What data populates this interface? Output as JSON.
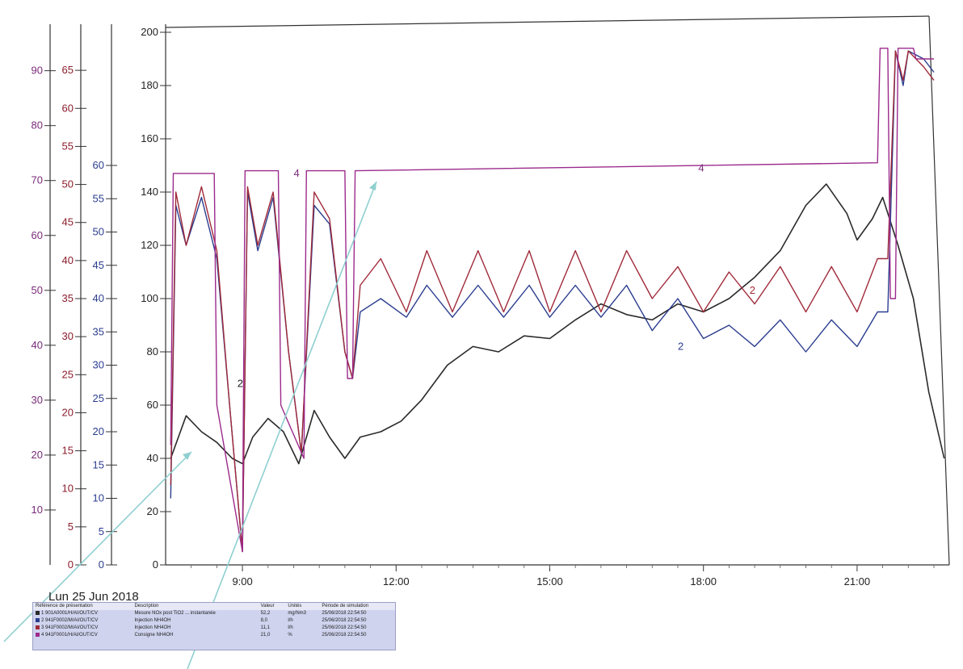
{
  "chart_data": {
    "type": "line",
    "date": "Lun 25 Jun 2018",
    "x_ticks": [
      "9:00",
      "12:00",
      "15:00",
      "18:00",
      "21:00"
    ],
    "axes": [
      {
        "id": "a1",
        "color": "#7a2a7a",
        "ticks": [
          10,
          20,
          30,
          40,
          50,
          60,
          70,
          80,
          90
        ],
        "range": [
          0,
          97
        ]
      },
      {
        "id": "a2",
        "color": "#8b1d2c",
        "ticks": [
          0,
          5,
          10,
          15,
          20,
          25,
          30,
          35,
          40,
          45,
          50,
          55,
          60,
          65
        ],
        "range": [
          0,
          70
        ]
      },
      {
        "id": "a3",
        "color": "#2b3d8f",
        "ticks": [
          0,
          5,
          10,
          15,
          20,
          25,
          30,
          35,
          40,
          45,
          50,
          55,
          60
        ],
        "range": [
          0,
          80
        ]
      },
      {
        "id": "a4",
        "color": "#222222",
        "ticks": [
          0,
          20,
          40,
          60,
          80,
          100,
          120,
          140,
          160,
          180,
          200
        ],
        "range": [
          0,
          200
        ]
      }
    ],
    "series": [
      {
        "id": "1",
        "color": "#2a2a2a",
        "x": [
          7.6,
          7.9,
          8.2,
          8.5,
          8.8,
          9.0,
          9.2,
          9.5,
          9.8,
          10.1,
          10.4,
          10.7,
          11.0,
          11.3,
          11.7,
          12.1,
          12.5,
          13.0,
          13.5,
          14.0,
          14.5,
          15.0,
          15.5,
          16.0,
          16.5,
          17.0,
          17.5,
          18.0,
          18.5,
          19.0,
          19.5,
          20.0,
          20.4,
          20.8,
          21.0,
          21.3,
          21.5,
          21.8,
          22.1,
          22.4,
          22.7
        ],
        "y": [
          40,
          56,
          50,
          46,
          40,
          38,
          48,
          55,
          50,
          38,
          58,
          48,
          40,
          48,
          50,
          54,
          62,
          75,
          82,
          80,
          86,
          85,
          92,
          98,
          94,
          92,
          98,
          95,
          100,
          108,
          118,
          135,
          143,
          132,
          122,
          130,
          138,
          120,
          100,
          65,
          40
        ]
      },
      {
        "id": "2",
        "color": "#2b3d8f",
        "x": [
          7.6,
          7.7,
          7.9,
          8.2,
          8.5,
          8.75,
          9.0,
          9.1,
          9.3,
          9.6,
          9.9,
          10.15,
          10.4,
          10.7,
          11.0,
          11.15,
          11.3,
          11.7,
          12.2,
          12.6,
          13.1,
          13.6,
          14.1,
          14.6,
          15.0,
          15.5,
          16.0,
          16.5,
          17.0,
          17.5,
          18.0,
          18.5,
          19.0,
          19.5,
          20.0,
          20.5,
          21.0,
          21.4,
          21.6,
          21.75,
          21.9,
          22.0,
          22.3,
          22.5
        ],
        "y": [
          25,
          135,
          120,
          138,
          115,
          60,
          5,
          140,
          118,
          138,
          80,
          42,
          135,
          128,
          80,
          70,
          95,
          100,
          93,
          105,
          93,
          105,
          93,
          105,
          93,
          105,
          93,
          105,
          88,
          100,
          85,
          90,
          82,
          92,
          80,
          92,
          82,
          95,
          95,
          193,
          180,
          193,
          190,
          185
        ]
      },
      {
        "id": "3",
        "color": "#a02a3a",
        "x": [
          7.6,
          7.7,
          7.9,
          8.2,
          8.5,
          8.75,
          9.0,
          9.1,
          9.3,
          9.6,
          9.9,
          10.15,
          10.4,
          10.7,
          11.0,
          11.15,
          11.3,
          11.7,
          12.2,
          12.6,
          13.1,
          13.6,
          14.1,
          14.6,
          15.0,
          15.5,
          16.0,
          16.5,
          17.0,
          17.5,
          18.0,
          18.5,
          19.0,
          19.5,
          20.0,
          20.5,
          21.0,
          21.4,
          21.6,
          21.75,
          21.9,
          22.0,
          22.3,
          22.5
        ],
        "y": [
          30,
          140,
          120,
          142,
          118,
          60,
          5,
          142,
          120,
          140,
          80,
          42,
          140,
          130,
          80,
          70,
          105,
          115,
          95,
          118,
          95,
          118,
          95,
          118,
          95,
          118,
          95,
          118,
          100,
          112,
          95,
          110,
          98,
          112,
          95,
          112,
          95,
          115,
          115,
          193,
          182,
          193,
          187,
          182
        ]
      },
      {
        "id": "4",
        "color": "#9c2a8c",
        "x": [
          7.6,
          7.65,
          8.45,
          8.5,
          9.0,
          9.05,
          9.7,
          9.75,
          10.2,
          10.25,
          11.0,
          11.05,
          11.15,
          11.2,
          21.4,
          21.45,
          21.6,
          21.65,
          21.75,
          21.8,
          22.1,
          22.15,
          22.5
        ],
        "y": [
          45,
          147,
          147,
          60,
          5,
          148,
          148,
          60,
          40,
          148,
          148,
          70,
          70,
          148,
          151,
          194,
          194,
          100,
          100,
          194,
          194,
          190,
          190
        ]
      }
    ],
    "labels": [
      {
        "text": "4",
        "x": 10.0,
        "y": 147,
        "color": "#7a2a7a"
      },
      {
        "text": "4",
        "x": 17.9,
        "y": 149,
        "color": "#7a2a7a"
      },
      {
        "text": "2",
        "x": 8.9,
        "y": 68,
        "color": "#222222"
      },
      {
        "text": "2",
        "x": 18.9,
        "y": 103,
        "color": "#a02a3a"
      },
      {
        "text": "2",
        "x": 17.5,
        "y": 82,
        "color": "#2b3d8f"
      }
    ]
  },
  "legend": {
    "headers": [
      "Référence de présentation",
      "Description",
      "Valeur",
      "Unités",
      "Période de simulation"
    ],
    "rows": [
      {
        "color": "#2a2a2a",
        "ref": "1 901A0001/H/AI/OUT/CV",
        "desc": "Mesure NOx post TiO2 ... instantanée",
        "value": "52,2",
        "unit": "mg/Nm3",
        "period": "25/06/2018 22:54:50"
      },
      {
        "color": "#2b3d8f",
        "ref": "2 941F0002/M/AI/OUT/CV",
        "desc": "Injection NH4OH",
        "value": "8,0",
        "unit": "l/h",
        "period": "25/06/2018 22:54:50"
      },
      {
        "color": "#a02a3a",
        "ref": "3 941F0002/M/AI/OUT/CV",
        "desc": "Injection NH4OH",
        "value": "11,1",
        "unit": "l/h",
        "period": "25/06/2018 22:54:50"
      },
      {
        "color": "#9c2a8c",
        "ref": "4 941F0001/H/AI/OUT/CV",
        "desc": "Consigne NH4OH",
        "value": "21,0",
        "unit": "%",
        "period": "25/06/2018 22:54:50"
      }
    ]
  }
}
